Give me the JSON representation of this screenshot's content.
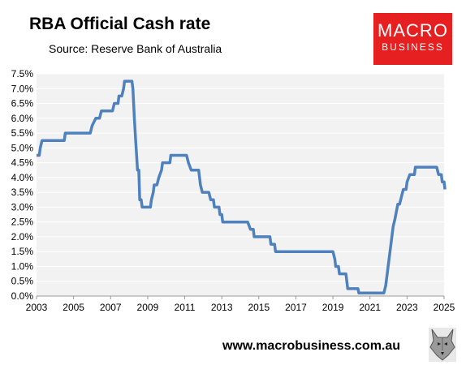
{
  "header": {
    "title": "RBA Official Cash rate",
    "subtitle": "Source: Reserve Bank of Australia"
  },
  "logo": {
    "line1": "MACRO",
    "line2": "BUSINESS",
    "color": "#e62020"
  },
  "footer": {
    "url": "www.macrobusiness.com.au",
    "icon": "wolf-logo-icon"
  },
  "colors": {
    "line": "#4f81bd",
    "plot_background": "#f2f2f2"
  },
  "chart_data": {
    "type": "line",
    "title": "RBA Official Cash rate",
    "xlabel": "",
    "ylabel": "",
    "xlim": [
      2003,
      2025
    ],
    "ylim": [
      0,
      7.5
    ],
    "grid": "horizontal",
    "x_ticks": [
      "2003",
      "2005",
      "2007",
      "2009",
      "2011",
      "2013",
      "2015",
      "2017",
      "2019",
      "2021",
      "2023",
      "2025"
    ],
    "y_ticks": [
      "0.0%",
      "0.5%",
      "1.0%",
      "1.5%",
      "2.0%",
      "2.5%",
      "3.0%",
      "3.5%",
      "4.0%",
      "4.5%",
      "5.0%",
      "5.5%",
      "6.0%",
      "6.5%",
      "7.0%",
      "7.5%"
    ],
    "series": [
      {
        "name": "",
        "points": [
          [
            2003.0,
            4.75
          ],
          [
            2003.15,
            4.75
          ],
          [
            2003.2,
            5.0
          ],
          [
            2003.3,
            5.25
          ],
          [
            2004.5,
            5.25
          ],
          [
            2004.55,
            5.5
          ],
          [
            2005.9,
            5.5
          ],
          [
            2006.0,
            5.75
          ],
          [
            2006.2,
            6.0
          ],
          [
            2006.4,
            6.0
          ],
          [
            2006.5,
            6.25
          ],
          [
            2007.1,
            6.25
          ],
          [
            2007.2,
            6.5
          ],
          [
            2007.4,
            6.5
          ],
          [
            2007.45,
            6.75
          ],
          [
            2007.6,
            6.75
          ],
          [
            2007.7,
            7.0
          ],
          [
            2007.75,
            7.25
          ],
          [
            2008.15,
            7.25
          ],
          [
            2008.2,
            7.0
          ],
          [
            2008.28,
            6.0
          ],
          [
            2008.35,
            5.25
          ],
          [
            2008.45,
            4.25
          ],
          [
            2008.52,
            4.25
          ],
          [
            2008.57,
            3.25
          ],
          [
            2008.65,
            3.25
          ],
          [
            2008.7,
            3.0
          ],
          [
            2009.15,
            3.0
          ],
          [
            2009.2,
            3.25
          ],
          [
            2009.3,
            3.5
          ],
          [
            2009.35,
            3.75
          ],
          [
            2009.5,
            3.75
          ],
          [
            2009.6,
            4.0
          ],
          [
            2009.75,
            4.25
          ],
          [
            2009.8,
            4.5
          ],
          [
            2010.2,
            4.5
          ],
          [
            2010.25,
            4.75
          ],
          [
            2011.1,
            4.75
          ],
          [
            2011.2,
            4.5
          ],
          [
            2011.35,
            4.25
          ],
          [
            2011.75,
            4.25
          ],
          [
            2011.85,
            3.75
          ],
          [
            2011.95,
            3.5
          ],
          [
            2012.3,
            3.5
          ],
          [
            2012.4,
            3.25
          ],
          [
            2012.55,
            3.25
          ],
          [
            2012.6,
            3.0
          ],
          [
            2012.85,
            3.0
          ],
          [
            2012.9,
            2.75
          ],
          [
            2013.0,
            2.75
          ],
          [
            2013.05,
            2.5
          ],
          [
            2014.3,
            2.5
          ],
          [
            2014.4,
            2.5
          ],
          [
            2014.55,
            2.25
          ],
          [
            2014.7,
            2.25
          ],
          [
            2014.75,
            2.0
          ],
          [
            2015.6,
            2.0
          ],
          [
            2015.65,
            1.75
          ],
          [
            2015.85,
            1.75
          ],
          [
            2015.9,
            1.5
          ],
          [
            2019.0,
            1.5
          ],
          [
            2019.1,
            1.25
          ],
          [
            2019.15,
            1.0
          ],
          [
            2019.3,
            1.0
          ],
          [
            2019.35,
            0.75
          ],
          [
            2019.7,
            0.75
          ],
          [
            2019.75,
            0.5
          ],
          [
            2019.8,
            0.25
          ],
          [
            2020.35,
            0.25
          ],
          [
            2020.4,
            0.1
          ],
          [
            2021.75,
            0.1
          ],
          [
            2021.85,
            0.35
          ],
          [
            2021.95,
            0.85
          ],
          [
            2022.05,
            1.35
          ],
          [
            2022.15,
            1.85
          ],
          [
            2022.25,
            2.35
          ],
          [
            2022.35,
            2.6
          ],
          [
            2022.5,
            3.1
          ],
          [
            2022.6,
            3.1
          ],
          [
            2022.7,
            3.35
          ],
          [
            2022.8,
            3.6
          ],
          [
            2022.95,
            3.6
          ],
          [
            2023.0,
            3.85
          ],
          [
            2023.15,
            4.1
          ],
          [
            2023.4,
            4.1
          ],
          [
            2023.45,
            4.35
          ],
          [
            2024.6,
            4.35
          ],
          [
            2024.7,
            4.1
          ],
          [
            2024.85,
            4.1
          ],
          [
            2024.9,
            3.85
          ],
          [
            2025.0,
            3.85
          ],
          [
            2025.05,
            3.6
          ]
        ]
      }
    ]
  }
}
